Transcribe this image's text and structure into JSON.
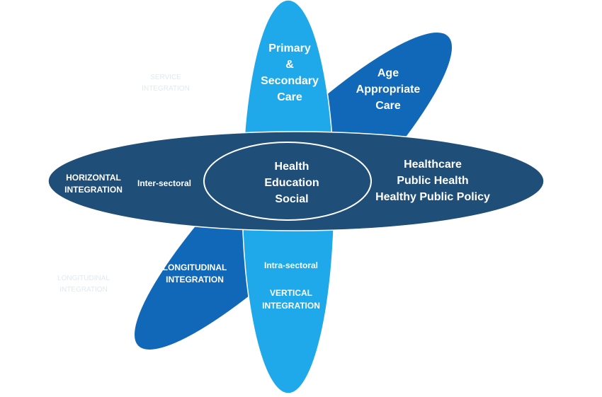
{
  "colors": {
    "diagonal": "#1168b8",
    "vertical": "#1fa9ea",
    "horizontal": "#1f4e79",
    "center_outline": "#ffffff",
    "faint_text": "#dfe9f4"
  },
  "petals": {
    "vertical_top": [
      "Primary",
      "&",
      "Secondary",
      "Care"
    ],
    "diagonal_top": [
      "Age",
      "Appropriate",
      "Care"
    ],
    "horizontal_left": [
      "HORIZONTAL",
      "INTEGRATION"
    ],
    "horizontal_inner_left": "Inter-sectoral",
    "center": [
      "Health",
      "Education",
      "Social"
    ],
    "horizontal_right": [
      "Healthcare",
      "Public Health",
      "Healthy Public Policy"
    ],
    "diagonal_bottom": [
      "LONGITUDINAL",
      "INTEGRATION"
    ],
    "vertical_bottom_top": "Intra-sectoral",
    "vertical_bottom": [
      "VERTICAL",
      "INTEGRATION"
    ]
  },
  "faint_labels": {
    "upper_left": [
      "SERVICE",
      "INTEGRATION"
    ],
    "lower_left": [
      "LONGITUDINAL",
      "INTEGRATION"
    ]
  }
}
